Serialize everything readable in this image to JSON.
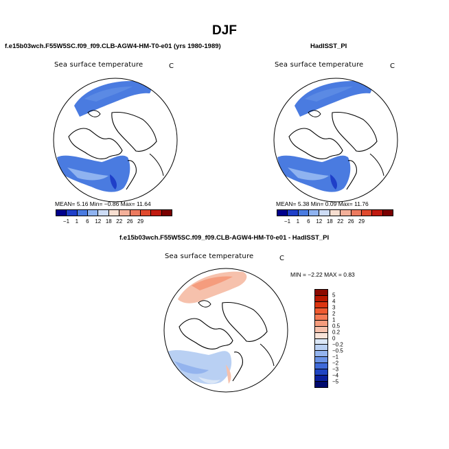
{
  "page_title": "DJF",
  "panel_left": {
    "subtitle": "f.e15b03wch.F55W5SC.f09_f09.CLB-AGW4-HM-T0-e01 (yrs 1980-1989)",
    "variable": "Sea surface temperature",
    "units": "C",
    "stats": "MEAN=   5.16   Min=  −0.86   Max=  11.64"
  },
  "panel_right": {
    "subtitle": "HadISST_PI",
    "variable": "Sea surface temperature",
    "units": "C",
    "stats": "MEAN=   5.38   Min=   0.09   Max=  11.76"
  },
  "panel_diff": {
    "subtitle": "f.e15b03wch.F55W5SC.f09_f09.CLB-AGW4-HM-T0-e01 - HadISST_PI",
    "variable": "Sea surface temperature",
    "units": "C",
    "stats": "MIN =   −2.22  MAX =    0.83"
  },
  "colorbar_abs": {
    "labels": [
      "−1",
      "1",
      "6",
      "12",
      "18",
      "22",
      "26",
      "29"
    ],
    "colors": [
      "#00008b",
      "#1f3fc8",
      "#4a7be0",
      "#8fb3f0",
      "#cddcf5",
      "#f7ded0",
      "#f3b09a",
      "#ec7a5f",
      "#e04a2e",
      "#c01a10",
      "#7a0000"
    ]
  },
  "colorbar_diff": {
    "labels": [
      "5",
      "4",
      "3",
      "2",
      "1",
      "0.5",
      "0.2",
      "0",
      "−0.2",
      "−0.5",
      "−1",
      "−2",
      "−3",
      "−4",
      "−5"
    ],
    "colors": [
      "#8b0a00",
      "#b81800",
      "#dc3410",
      "#ef5a30",
      "#f47a55",
      "#f59c7d",
      "#f6c1ac",
      "#f9e3d8",
      "#dbe7f7",
      "#b9d0f3",
      "#94b4ee",
      "#6b93e6",
      "#3f6ad9",
      "#1f44c2",
      "#0a1f9c",
      "#000a6e"
    ]
  }
}
